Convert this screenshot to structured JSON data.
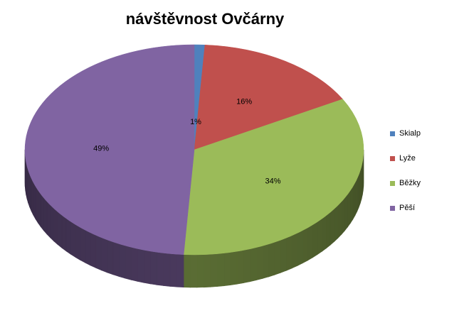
{
  "chart_data": {
    "type": "pie",
    "title": "návštěvnost Ovčárny",
    "style": "3d",
    "categories": [
      "Skialp",
      "Lyže",
      "Běžky",
      "Pěší"
    ],
    "values": [
      1,
      16,
      34,
      49
    ],
    "labels": [
      "1%",
      "16%",
      "34%",
      "49%"
    ],
    "colors": [
      "#4f81bd",
      "#c0504d",
      "#9bbb59",
      "#8064a2"
    ],
    "legend_position": "right"
  }
}
